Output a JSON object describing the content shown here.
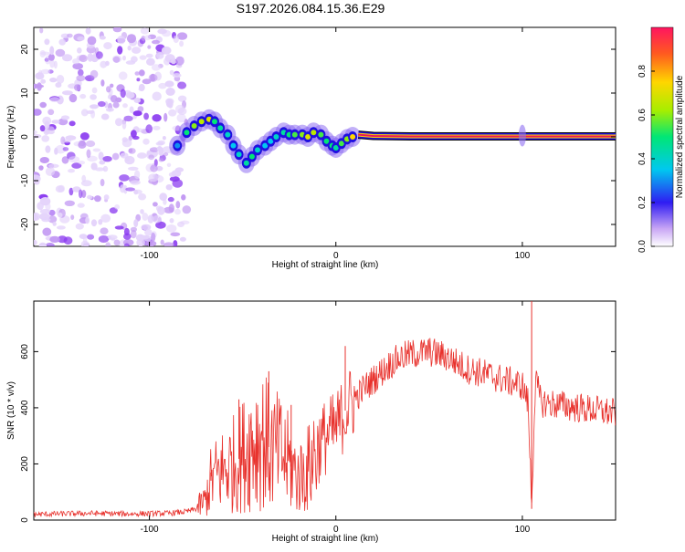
{
  "title": "S197.2026.084.15.36.E29",
  "colors": {
    "signal": "#e8312c",
    "noise_spots": "#8b3cf0",
    "track_core": "#e8195a"
  },
  "chart_data": [
    {
      "type": "heatmap",
      "title": "S197.2026.084.15.36.E29",
      "xlabel": "Height of straight line (km)",
      "ylabel": "Frequency (Hz)",
      "xlim": [
        -162,
        150
      ],
      "ylim": [
        -25,
        25
      ],
      "xticks": [
        -100,
        0,
        100
      ],
      "xtick_labels": [
        "-100",
        "0",
        "100"
      ],
      "yticks": [
        -20,
        -10,
        0,
        10,
        20
      ],
      "ytick_labels": [
        "-20",
        "-10",
        "0",
        "10",
        "20"
      ],
      "colorbar": {
        "label": "Normalized spectral amplitude",
        "range": [
          0,
          1
        ],
        "ticks": [
          0.0,
          0.2,
          0.4,
          0.6,
          0.8
        ],
        "tick_labels": [
          "0.0",
          "0.2",
          "0.4",
          "0.6",
          "0.8"
        ]
      },
      "noise_region_x": [
        -162,
        -80
      ],
      "ridge": {
        "x": [
          -85,
          -80,
          -76,
          -72,
          -68,
          -65,
          -62,
          -58,
          -55,
          -52,
          -48,
          -45,
          -42,
          -38,
          -35,
          -32,
          -28,
          -25,
          -22,
          -18,
          -15,
          -12,
          -8,
          -5,
          -2,
          0,
          3,
          6,
          9,
          12,
          20,
          40,
          60,
          80,
          100,
          120,
          150
        ],
        "freq": [
          -2,
          1,
          2.5,
          3.5,
          4,
          3.5,
          2,
          0.5,
          -2,
          -4,
          -6,
          -4.5,
          -3,
          -2,
          -1,
          0,
          1,
          0.5,
          0.5,
          0.5,
          0,
          1,
          0.5,
          -1,
          -2,
          -2.5,
          -1.5,
          -0.5,
          0,
          0.5,
          0.2,
          0.1,
          0.1,
          0.1,
          0.1,
          0.1,
          0.1
        ],
        "amplitude": [
          0.3,
          0.5,
          0.6,
          0.65,
          0.7,
          0.5,
          0.45,
          0.4,
          0.35,
          0.4,
          0.45,
          0.5,
          0.4,
          0.35,
          0.35,
          0.4,
          0.45,
          0.5,
          0.55,
          0.6,
          0.7,
          0.65,
          0.55,
          0.5,
          0.5,
          0.45,
          0.55,
          0.6,
          0.75,
          0.85,
          0.9,
          0.95,
          0.95,
          0.95,
          0.95,
          0.95,
          0.95
        ]
      }
    },
    {
      "type": "line",
      "xlabel": "Height of straight line (km)",
      "ylabel": "SNR (10 * v/v)",
      "xlim": [
        -162,
        150
      ],
      "ylim": [
        0,
        780
      ],
      "xticks": [
        -100,
        0,
        100
      ],
      "xtick_labels": [
        "-100",
        "0",
        "100"
      ],
      "yticks": [
        0,
        200,
        400,
        600
      ],
      "ytick_labels": [
        "0",
        "200",
        "400",
        "600"
      ],
      "series": [
        {
          "name": "SNR",
          "x": [
            -162,
            -150,
            -130,
            -110,
            -90,
            -80,
            -75,
            -70,
            -67,
            -64,
            -60,
            -55,
            -50,
            -45,
            -40,
            -35,
            -30,
            -25,
            -20,
            -15,
            -10,
            -5,
            0,
            5,
            10,
            15,
            20,
            25,
            30,
            35,
            40,
            45,
            50,
            55,
            60,
            65,
            70,
            80,
            90,
            100,
            103,
            105,
            107,
            110,
            120,
            130,
            140,
            150
          ],
          "y": [
            20,
            22,
            24,
            22,
            24,
            30,
            40,
            70,
            140,
            160,
            180,
            200,
            230,
            280,
            300,
            250,
            240,
            200,
            150,
            180,
            260,
            300,
            320,
            390,
            430,
            470,
            500,
            530,
            560,
            580,
            590,
            595,
            600,
            590,
            580,
            560,
            540,
            520,
            500,
            480,
            420,
            60,
            500,
            420,
            410,
            400,
            390,
            380
          ],
          "spikes": [
            {
              "x": -67,
              "y": 170
            },
            {
              "x": -52,
              "y": 430
            },
            {
              "x": -36,
              "y": 530
            },
            {
              "x": -24,
              "y": 410
            },
            {
              "x": 5,
              "y": 620
            },
            {
              "x": 105,
              "y": 780
            },
            {
              "x": 105,
              "y": 40
            }
          ]
        }
      ]
    }
  ]
}
